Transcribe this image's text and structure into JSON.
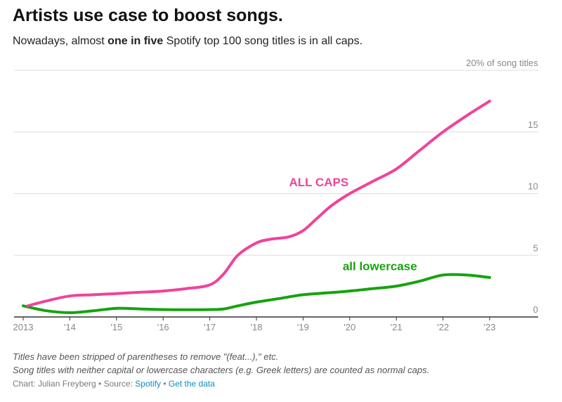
{
  "header": {
    "title": "Artists use case to boost songs.",
    "subtitle_pre": "Nowadays, almost ",
    "subtitle_bold": "one in five",
    "subtitle_post": " Spotify top 100 song titles is in all caps."
  },
  "notes": {
    "line1": "Titles have been stripped of parentheses to remove \"(feat...),\" etc.",
    "line2": "Song titles with neither capital or lowercase characters (e.g. Greek letters) are counted as normal caps."
  },
  "credits": {
    "chart_by": "Chart: Julian Freyberg",
    "sep": " • ",
    "source_label": "Source: ",
    "source_link": "Spotify",
    "data_link": "Get the data"
  },
  "colors": {
    "all_caps": "#f0439a",
    "lowercase": "#16a30e",
    "grid": "#dddddd",
    "axis": "#333333",
    "link": "#0a8fc0"
  },
  "chart_data": {
    "type": "line",
    "title": "",
    "xlabel": "",
    "ylabel": "",
    "xlim": [
      2013,
      2024
    ],
    "ylim": [
      0,
      20
    ],
    "x_ticks": [
      2013,
      2014,
      2015,
      2016,
      2017,
      2018,
      2019,
      2020,
      2021,
      2022,
      2023
    ],
    "x_tick_labels": [
      "2013",
      "'14",
      "'15",
      "'16",
      "'17",
      "'18",
      "'19",
      "'20",
      "'21",
      "'22",
      "'23"
    ],
    "y_ticks": [
      0,
      5,
      10,
      15,
      20
    ],
    "y_tick_labels": [
      "0",
      "5",
      "10",
      "15",
      "20% of song titles"
    ],
    "grid": true,
    "series": [
      {
        "name": "ALL CAPS",
        "color": "#f0439a",
        "x": [
          2013.1,
          2013.5,
          2014.0,
          2014.5,
          2015.0,
          2015.5,
          2016.0,
          2016.5,
          2017.0,
          2017.3,
          2017.6,
          2018.0,
          2018.3,
          2018.7,
          2019.0,
          2019.3,
          2019.6,
          2020.0,
          2020.5,
          2021.0,
          2021.5,
          2022.0,
          2022.5,
          2023.0
        ],
        "values": [
          0.9,
          1.3,
          1.7,
          1.8,
          1.9,
          2.0,
          2.1,
          2.3,
          2.6,
          3.5,
          5.0,
          6.0,
          6.3,
          6.5,
          7.0,
          8.0,
          9.0,
          10.0,
          11.0,
          12.0,
          13.5,
          15.0,
          16.3,
          17.5
        ]
      },
      {
        "name": "all lowercase",
        "color": "#16a30e",
        "x": [
          2013.0,
          2013.5,
          2014.0,
          2014.5,
          2015.0,
          2015.5,
          2016.0,
          2016.5,
          2017.0,
          2017.3,
          2017.6,
          2018.0,
          2018.5,
          2019.0,
          2019.5,
          2020.0,
          2020.5,
          2021.0,
          2021.5,
          2022.0,
          2022.5,
          2023.0
        ],
        "values": [
          0.9,
          0.5,
          0.35,
          0.5,
          0.7,
          0.65,
          0.6,
          0.58,
          0.6,
          0.65,
          0.9,
          1.2,
          1.5,
          1.8,
          1.95,
          2.1,
          2.3,
          2.5,
          2.9,
          3.4,
          3.4,
          3.2
        ]
      }
    ],
    "annotations": [
      {
        "text": "ALL CAPS",
        "series": "ALL CAPS",
        "x": 2018.7,
        "y": 10.6,
        "anchor": "start"
      },
      {
        "text": "all lowercase",
        "series": "all lowercase",
        "x": 2019.85,
        "y": 3.8,
        "anchor": "start"
      }
    ]
  }
}
